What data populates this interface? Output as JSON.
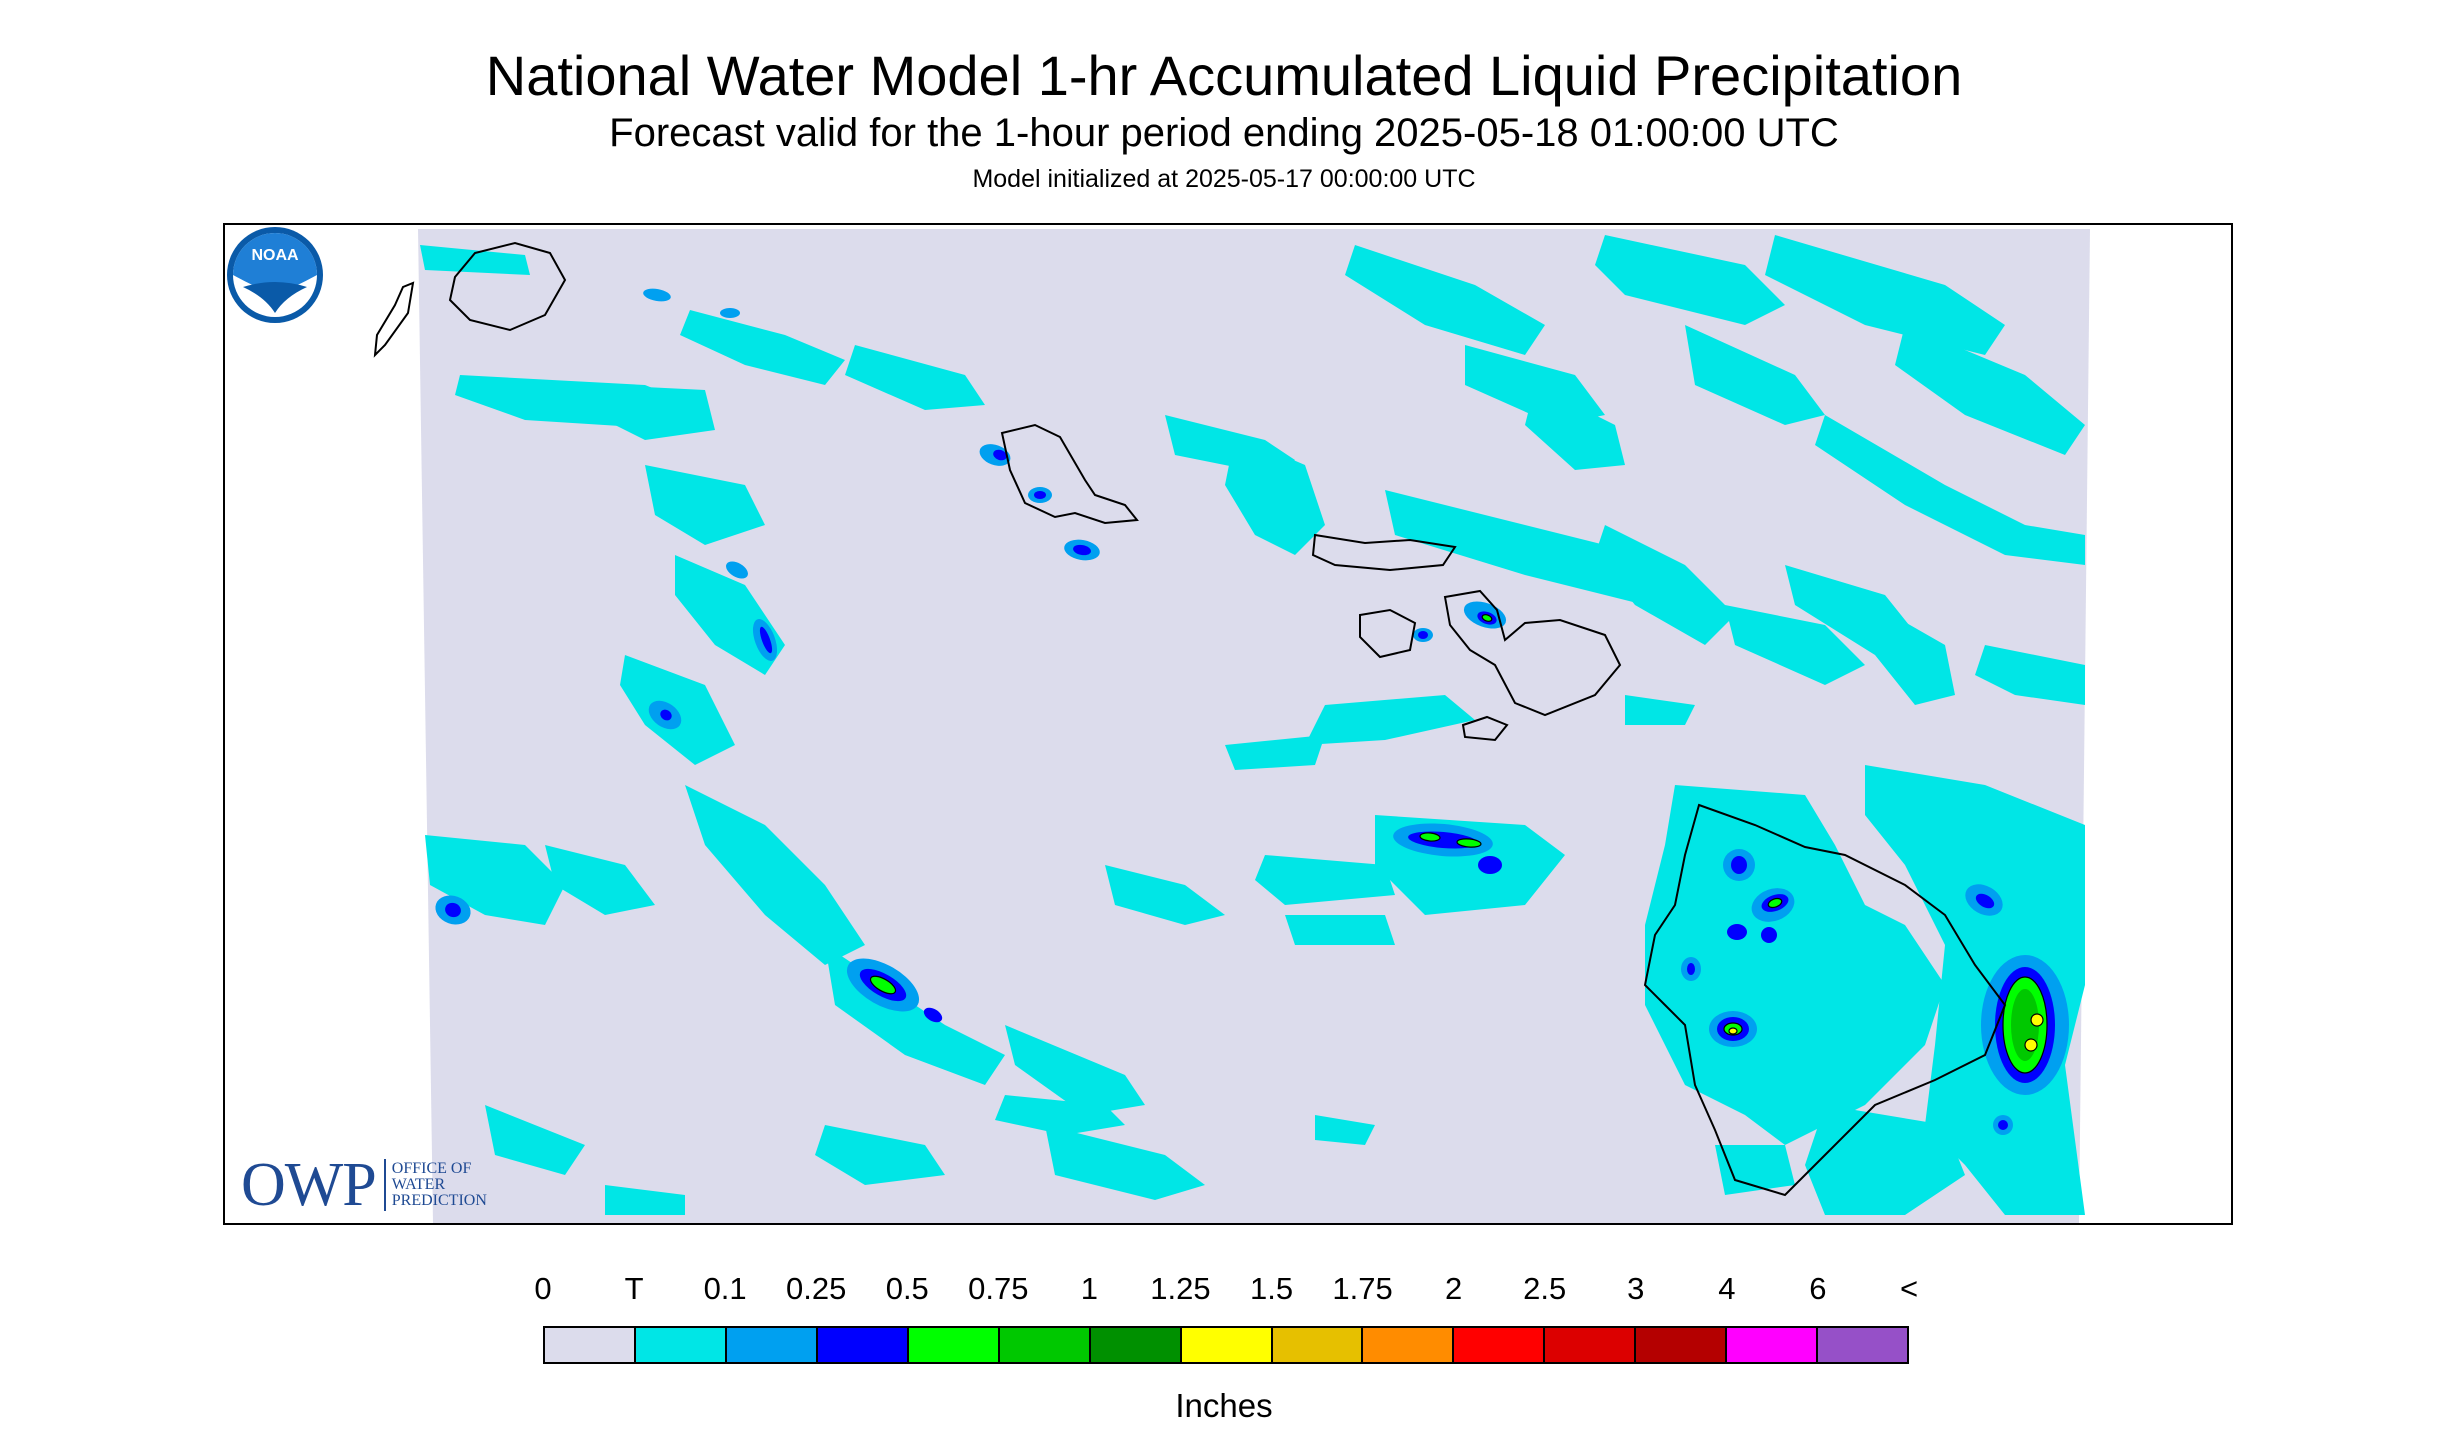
{
  "header": {
    "title": "National Water Model 1-hr Accumulated Liquid Precipitation",
    "subtitle": "Forecast valid for the 1-hour period ending 2025-05-18 01:00:00 UTC",
    "init_line": "Model initialized at 2025-05-17 00:00:00 UTC"
  },
  "map": {
    "background_color": "#dcdcec",
    "coastline_color": "#000000",
    "islands": [
      "Niihau",
      "Kauai",
      "Oahu",
      "Molokai",
      "Lanai",
      "Maui",
      "Kahoolawe",
      "Hawaii"
    ],
    "precip_colors": {
      "T": "#00e6e6",
      "0.1": "#00a0f0",
      "0.25": "#0000ff",
      "0.5": "#00ff00",
      "0.75": "#00c800",
      "1": "#009000",
      "1.25": "#ffff00"
    }
  },
  "branding": {
    "owp_mark": "OWP",
    "owp_lines": [
      "OFFICE OF",
      "WATER",
      "PREDICTION"
    ],
    "noaa_text": "NOAA",
    "noaa_colors": {
      "outer": "#0a5aa8",
      "inner": "#ffffff",
      "sky": "#1f7fd6"
    }
  },
  "legend": {
    "labels": [
      "0",
      "T",
      "0.1",
      "0.25",
      "0.5",
      "0.75",
      "1",
      "1.25",
      "1.5",
      "1.75",
      "2",
      "2.5",
      "3",
      "4",
      "6",
      "<"
    ],
    "colors": [
      "#dcdcec",
      "#00e6e6",
      "#00a0f0",
      "#0000ff",
      "#00ff00",
      "#00c800",
      "#009000",
      "#ffff00",
      "#e6c000",
      "#ff8c00",
      "#ff0000",
      "#dc0000",
      "#b40000",
      "#ff00ff",
      "#9650c8"
    ],
    "units": "Inches"
  }
}
